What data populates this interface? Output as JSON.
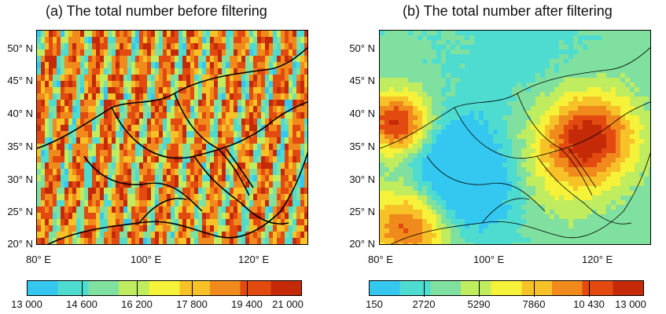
{
  "panels": [
    {
      "title": "(a) The total number before filtering",
      "lat_ticks": [
        "50° N",
        "45° N",
        "40° N",
        "35° N",
        "30° N",
        "25° N",
        "20° N"
      ],
      "lon_ticks": [
        "80° E",
        "100° E",
        "120° E"
      ],
      "colorbar": {
        "min": 13000,
        "max": 21000,
        "tick_labels": [
          "13 000",
          "14 600",
          "16 200",
          "17 800",
          "19 400",
          "21 000"
        ]
      }
    },
    {
      "title": "(b) The total number after filtering",
      "lat_ticks": [
        "50° N",
        "45° N",
        "40° N",
        "35° N",
        "30° N",
        "25° N",
        "20° N"
      ],
      "lon_ticks": [
        "80° E",
        "100° E",
        "120° E"
      ],
      "colorbar": {
        "min": 150,
        "max": 13000,
        "tick_labels": [
          "150",
          "2720",
          "5290",
          "7860",
          "10 430",
          "13 000"
        ]
      }
    }
  ],
  "colormap": [
    "#34c8f0",
    "#4fdcd0",
    "#7fe0a0",
    "#c0ec60",
    "#f6f23a",
    "#f7c228",
    "#f08a1c",
    "#e24a10",
    "#c42a08"
  ]
}
